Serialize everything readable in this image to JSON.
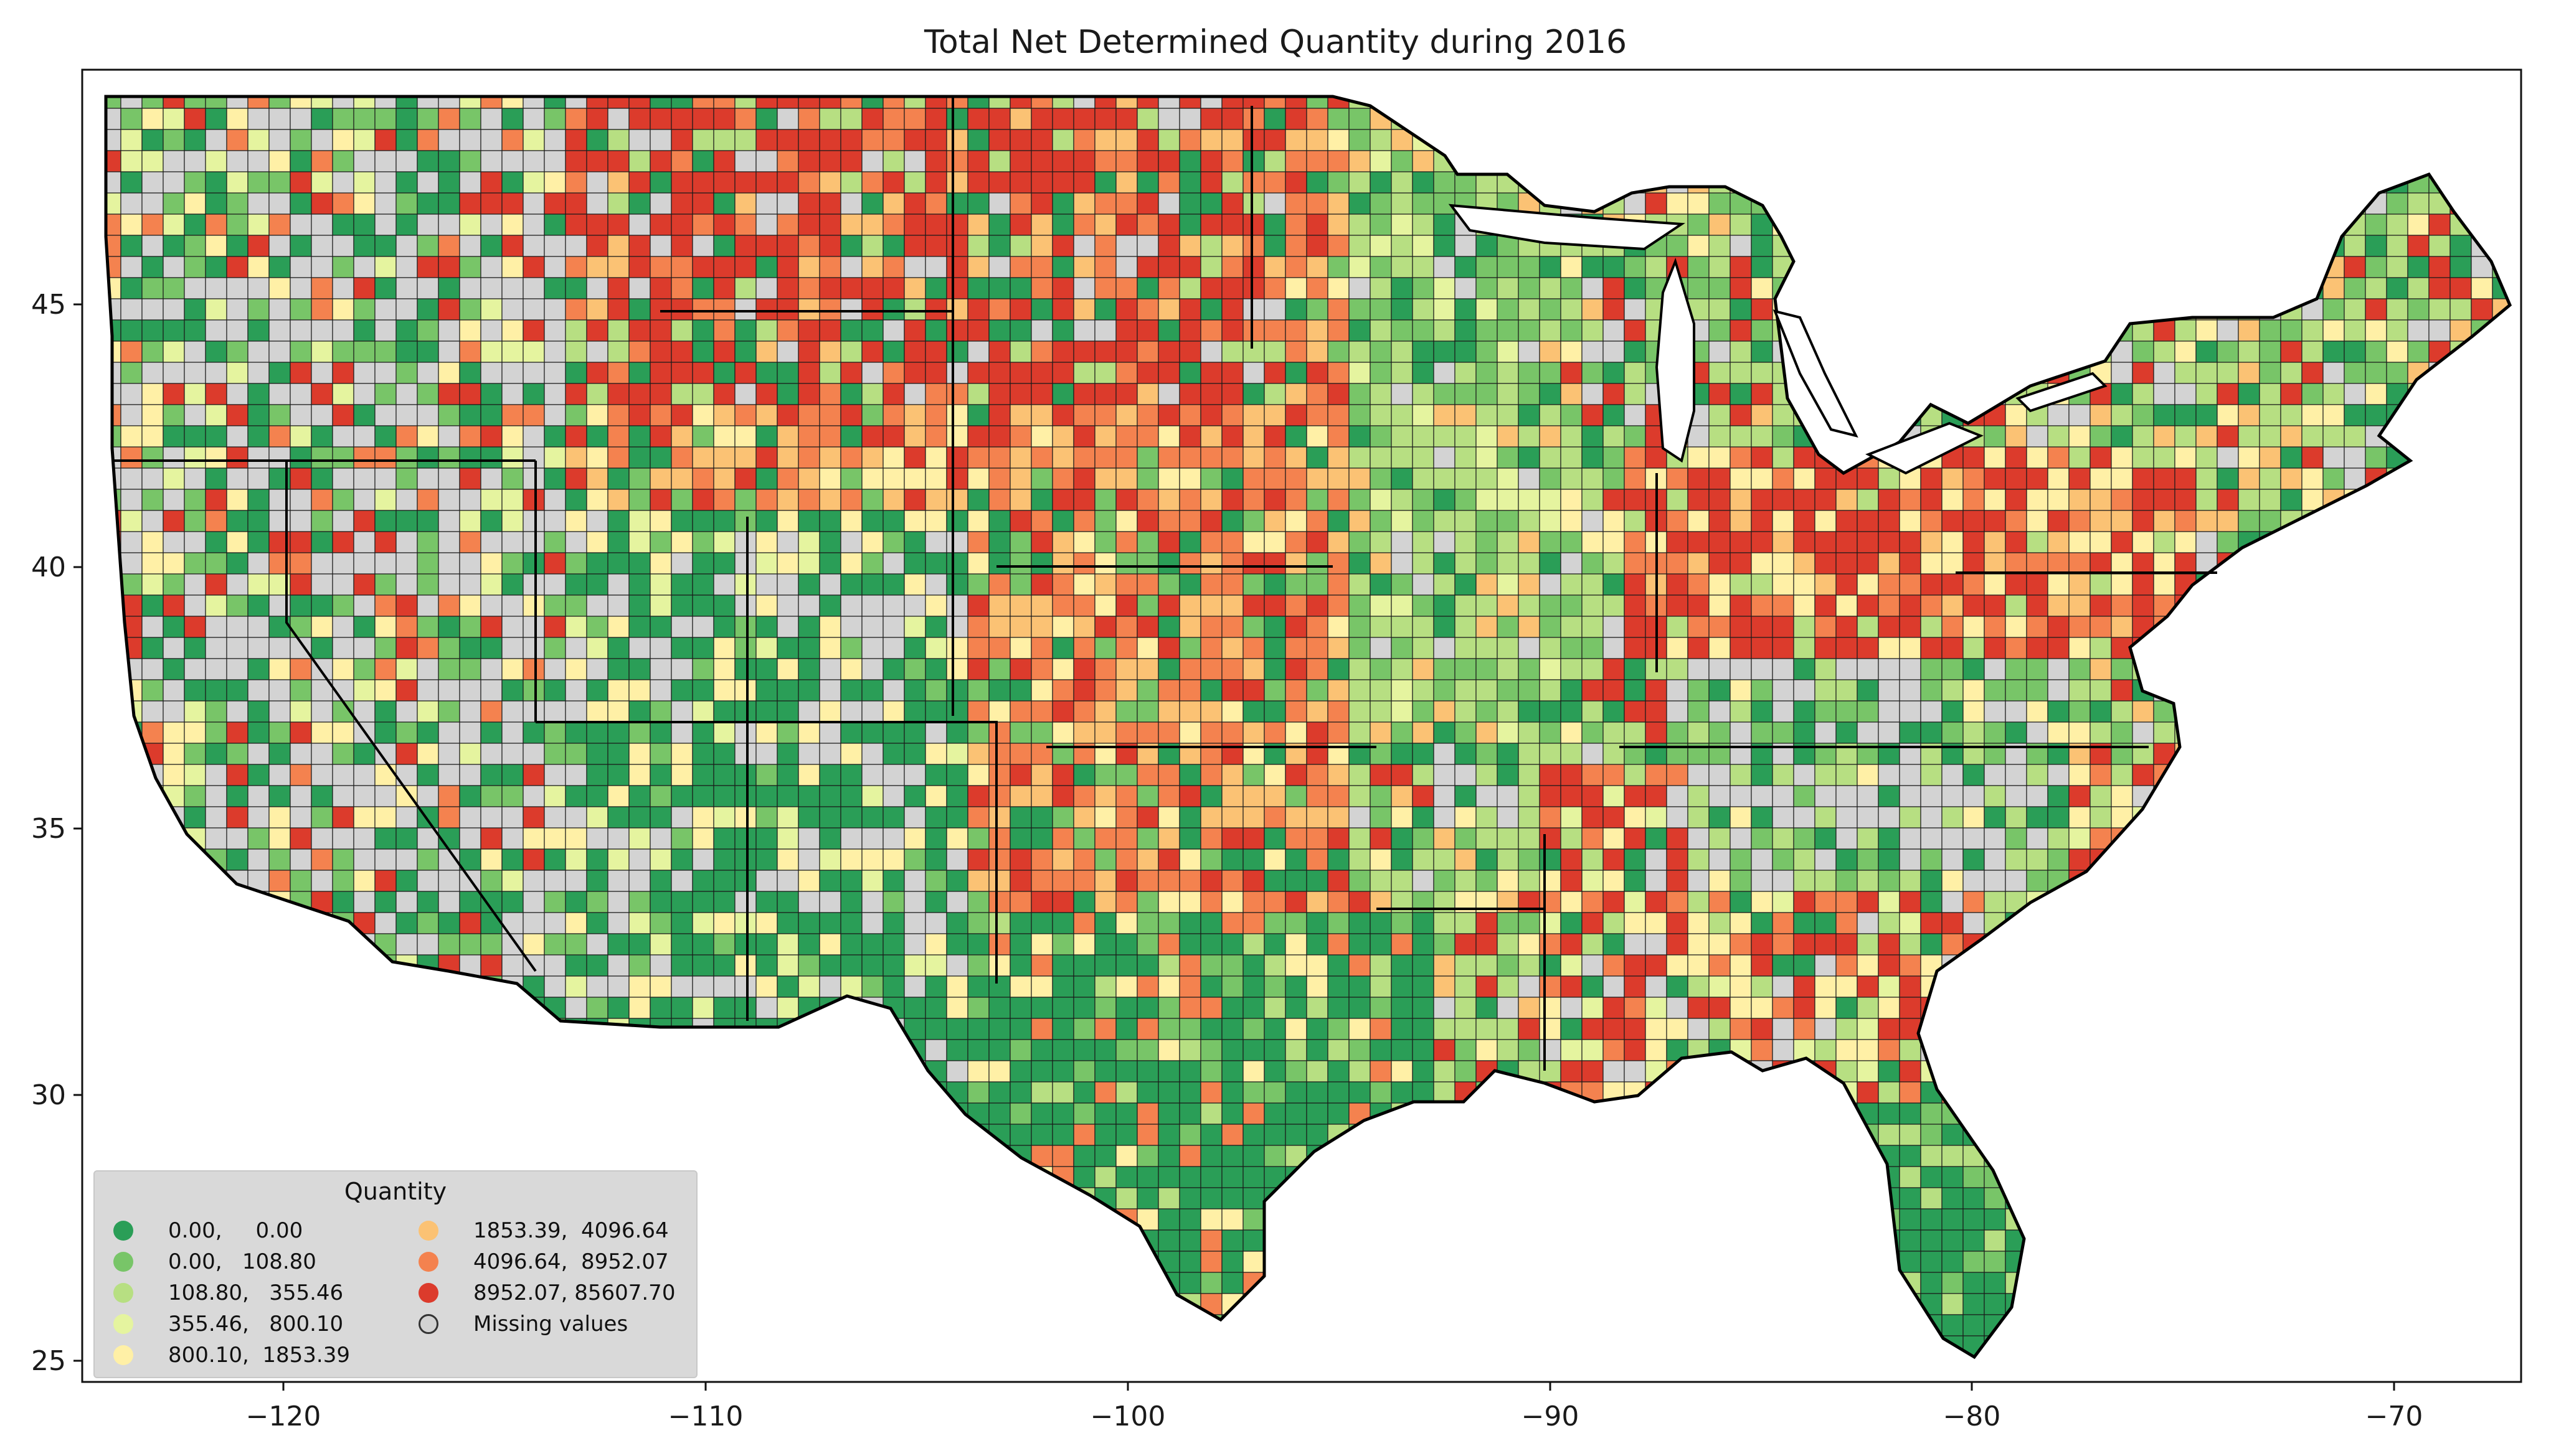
{
  "title": "Total Net Determined Quantity during 2016",
  "axes": {
    "x_ticks": [
      "−120",
      "−110",
      "−100",
      "−90",
      "−80",
      "−70"
    ],
    "y_ticks": [
      "25",
      "30",
      "35",
      "40",
      "45"
    ]
  },
  "legend": {
    "title": "Quantity",
    "items": [
      {
        "label": "0.00,     0.00",
        "color": "#2a9e57"
      },
      {
        "label": "0.00,   108.80",
        "color": "#78c568"
      },
      {
        "label": "108.80,   355.46",
        "color": "#b7df82"
      },
      {
        "label": "355.46,   800.10",
        "color": "#e5f49f"
      },
      {
        "label": "800.10,  1853.39",
        "color": "#fff0a6"
      },
      {
        "label": "1853.39,  4096.64",
        "color": "#fbc274"
      },
      {
        "label": "4096.64,  8952.07",
        "color": "#f4824f"
      },
      {
        "label": "8952.07, 85607.70",
        "color": "#dc3b2c"
      },
      {
        "label": "Missing values",
        "color": "#d3d3d3"
      }
    ]
  }
}
